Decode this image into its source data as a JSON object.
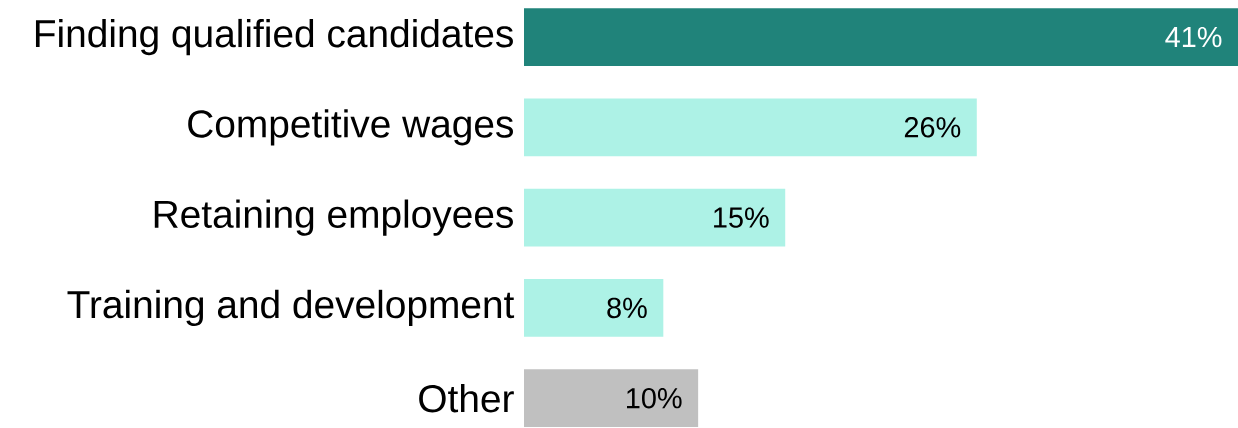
{
  "chart_data": {
    "type": "bar",
    "orientation": "horizontal",
    "categories": [
      "Finding qualified candidates",
      "Competitive wages",
      "Retaining employees",
      "Training and development",
      "Other"
    ],
    "values": [
      41,
      26,
      15,
      8,
      10
    ],
    "colors": [
      "#20837a",
      "#adf2e6",
      "#adf2e6",
      "#adf2e6",
      "#c0c0c0"
    ],
    "value_labels": [
      "41%",
      "26%",
      "15%",
      "8%",
      "10%"
    ],
    "xlim": [
      0,
      41
    ]
  }
}
